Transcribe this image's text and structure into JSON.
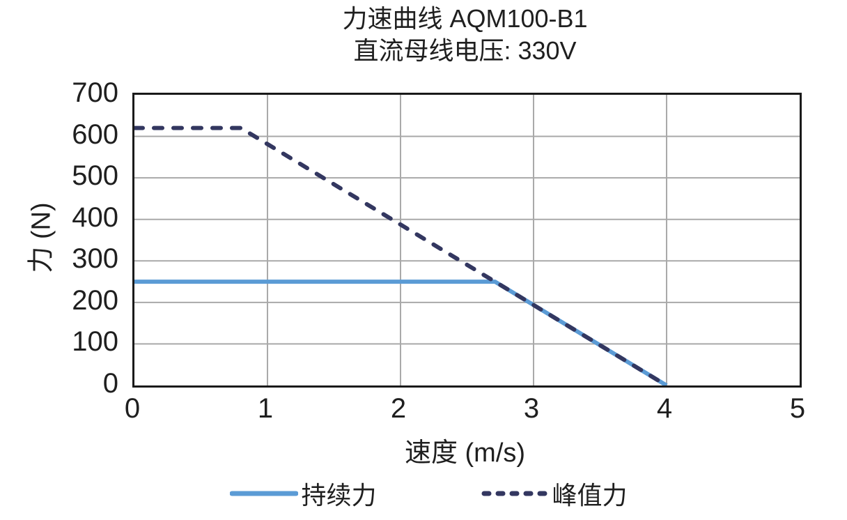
{
  "colors": {
    "background": "#FFFFFF",
    "text": "#1F1F1F",
    "grid": "#A9A9A9",
    "plot_border": "#1A1A1A",
    "continuous_force": "#5B9BD5",
    "peak_force": "#333760"
  },
  "chart_data": {
    "type": "line",
    "title": "力速曲线 AQM100-B1",
    "subtitle": "直流母线电压: 330V",
    "xlabel": "速度 (m/s)",
    "ylabel": "力 (N)",
    "xlim": [
      0,
      5
    ],
    "ylim": [
      0,
      700
    ],
    "x_ticks": [
      0,
      1,
      2,
      3,
      4,
      5
    ],
    "y_ticks": [
      0,
      100,
      200,
      300,
      400,
      500,
      600,
      700
    ],
    "grid": true,
    "legend_position": "bottom",
    "series": [
      {
        "name": "持续力",
        "style": "solid",
        "color": "#5B9BD5",
        "points": [
          [
            0,
            250
          ],
          [
            2.71,
            250
          ],
          [
            4,
            0
          ]
        ]
      },
      {
        "name": "峰值力",
        "style": "dashed",
        "color": "#333760",
        "points": [
          [
            0,
            620
          ],
          [
            0.8,
            620
          ],
          [
            4,
            0
          ]
        ]
      }
    ]
  }
}
